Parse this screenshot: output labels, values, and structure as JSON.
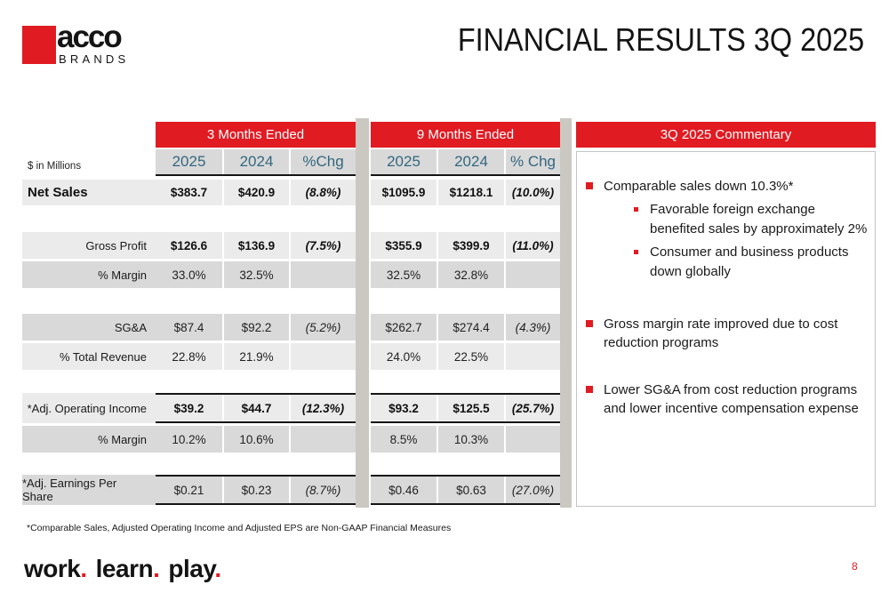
{
  "header": {
    "logo": {
      "brand": "acco",
      "sub": "BRANDS"
    },
    "title": "FINANCIAL RESULTS 3Q 2025"
  },
  "table": {
    "units_label": "$ in Millions",
    "groups": {
      "m3": "3 Months Ended",
      "m9": "9 Months Ended"
    },
    "columns": {
      "m3": [
        "2025",
        "2024",
        "%Chg"
      ],
      "m9": [
        "2025",
        "2024",
        "% Chg"
      ]
    },
    "rows": [
      {
        "label": "Net Sales",
        "m3": [
          "$383.7",
          "$420.9",
          "(8.8%)"
        ],
        "m9": [
          "$1095.9",
          "$1218.1",
          "(10.0%)"
        ]
      },
      {
        "label": "Gross Profit",
        "m3": [
          "$126.6",
          "$136.9",
          "(7.5%)"
        ],
        "m9": [
          "$355.9",
          "$399.9",
          "(11.0%)"
        ]
      },
      {
        "label": "% Margin",
        "m3": [
          "33.0%",
          "32.5%",
          ""
        ],
        "m9": [
          "32.5%",
          "32.8%",
          ""
        ]
      },
      {
        "label": "SG&A",
        "m3": [
          "$87.4",
          "$92.2",
          "(5.2%)"
        ],
        "m9": [
          "$262.7",
          "$274.4",
          "(4.3%)"
        ]
      },
      {
        "label": "% Total Revenue",
        "m3": [
          "22.8%",
          "21.9%",
          ""
        ],
        "m9": [
          "24.0%",
          "22.5%",
          ""
        ]
      },
      {
        "label": "*Adj. Operating Income",
        "m3": [
          "$39.2",
          "$44.7",
          "(12.3%)"
        ],
        "m9": [
          "$93.2",
          "$125.5",
          "(25.7%)"
        ]
      },
      {
        "label": "% Margin",
        "m3": [
          "10.2%",
          "10.6%",
          ""
        ],
        "m9": [
          "8.5%",
          "10.3%",
          ""
        ]
      },
      {
        "label": "*Adj. Earnings Per Share",
        "m3": [
          "$0.21",
          "$0.23",
          "(8.7%)"
        ],
        "m9": [
          "$0.46",
          "$0.63",
          "(27.0%)"
        ]
      }
    ]
  },
  "commentary": {
    "title": "3Q 2025 Commentary",
    "bullets": [
      {
        "text": "Comparable sales down 10.3%*",
        "sub": [
          "Favorable foreign exchange benefited sales by  approximately 2%",
          "Consumer and business products down globally"
        ]
      },
      {
        "text": "Gross margin rate improved due to cost reduction programs"
      },
      {
        "text": "Lower SG&A from cost reduction programs and lower incentive compensation expense"
      }
    ]
  },
  "footnote": "*Comparable Sales, Adjusted Operating Income and Adjusted EPS are Non-GAAP Financial Measures",
  "tagline": {
    "words": [
      "work",
      "learn",
      "play"
    ],
    "dot": "."
  },
  "page_number": "8",
  "colors": {
    "brand_red": "#e11b22",
    "year_text": "#33677f",
    "row_light": "#ebebeb",
    "row_dark": "#d9d9d9",
    "divider": "#cbc8c2"
  }
}
